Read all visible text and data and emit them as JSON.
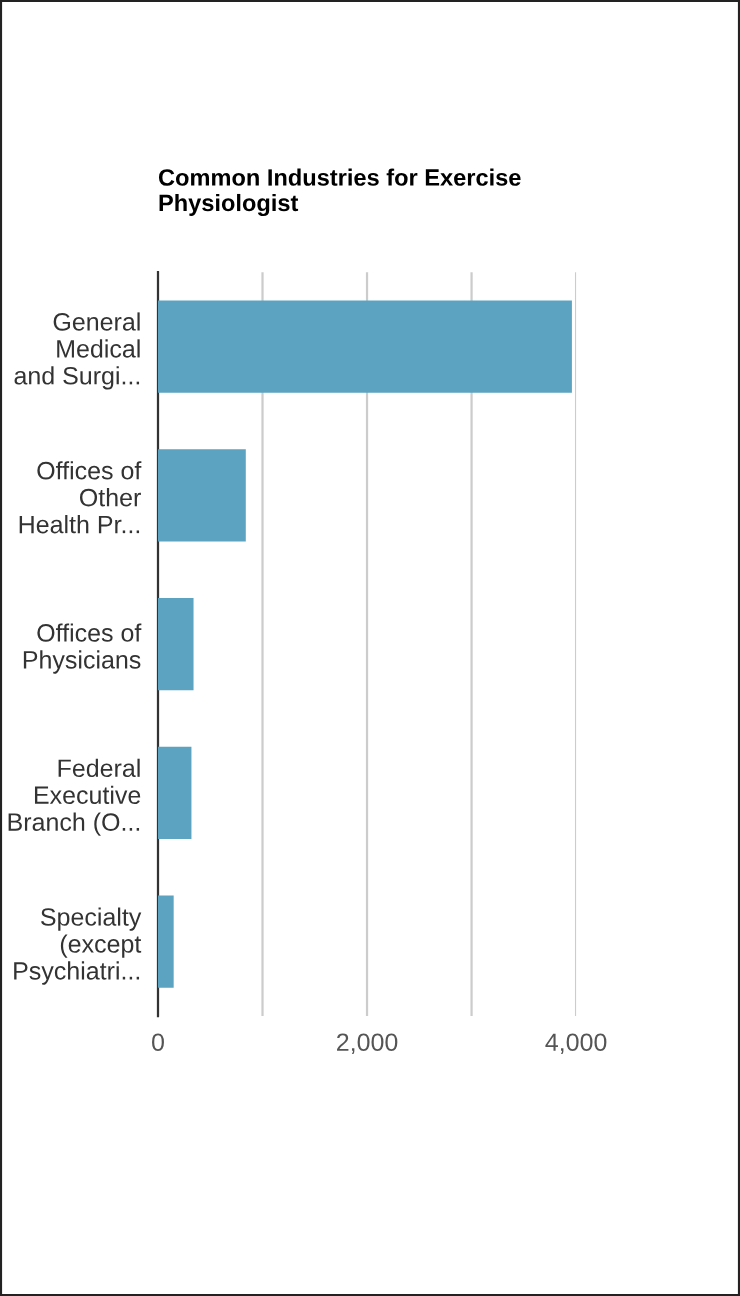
{
  "chart_data": {
    "type": "bar",
    "orientation": "horizontal",
    "title": "Common Industries for Exercise\nPhysiologist",
    "categories": [
      "General\nMedical\nand Surgi...",
      "Offices of\nOther\nHealth Pr...",
      "Offices of\nPhysicians",
      "Federal\nExecutive\nBranch (O...",
      "Specialty\n(except\nPsychiatri..."
    ],
    "values": [
      3960,
      840,
      340,
      320,
      150
    ],
    "color": "#5ba3c0",
    "xlim": [
      0,
      4000
    ],
    "xticks": [
      0,
      {
        "value": 1000,
        "label": null
      },
      {
        "value": 2000,
        "label": "2,000"
      },
      {
        "value": 3000,
        "label": null
      },
      {
        "value": 4000,
        "label": "4,000"
      }
    ],
    "grid": "x",
    "legend": false
  }
}
